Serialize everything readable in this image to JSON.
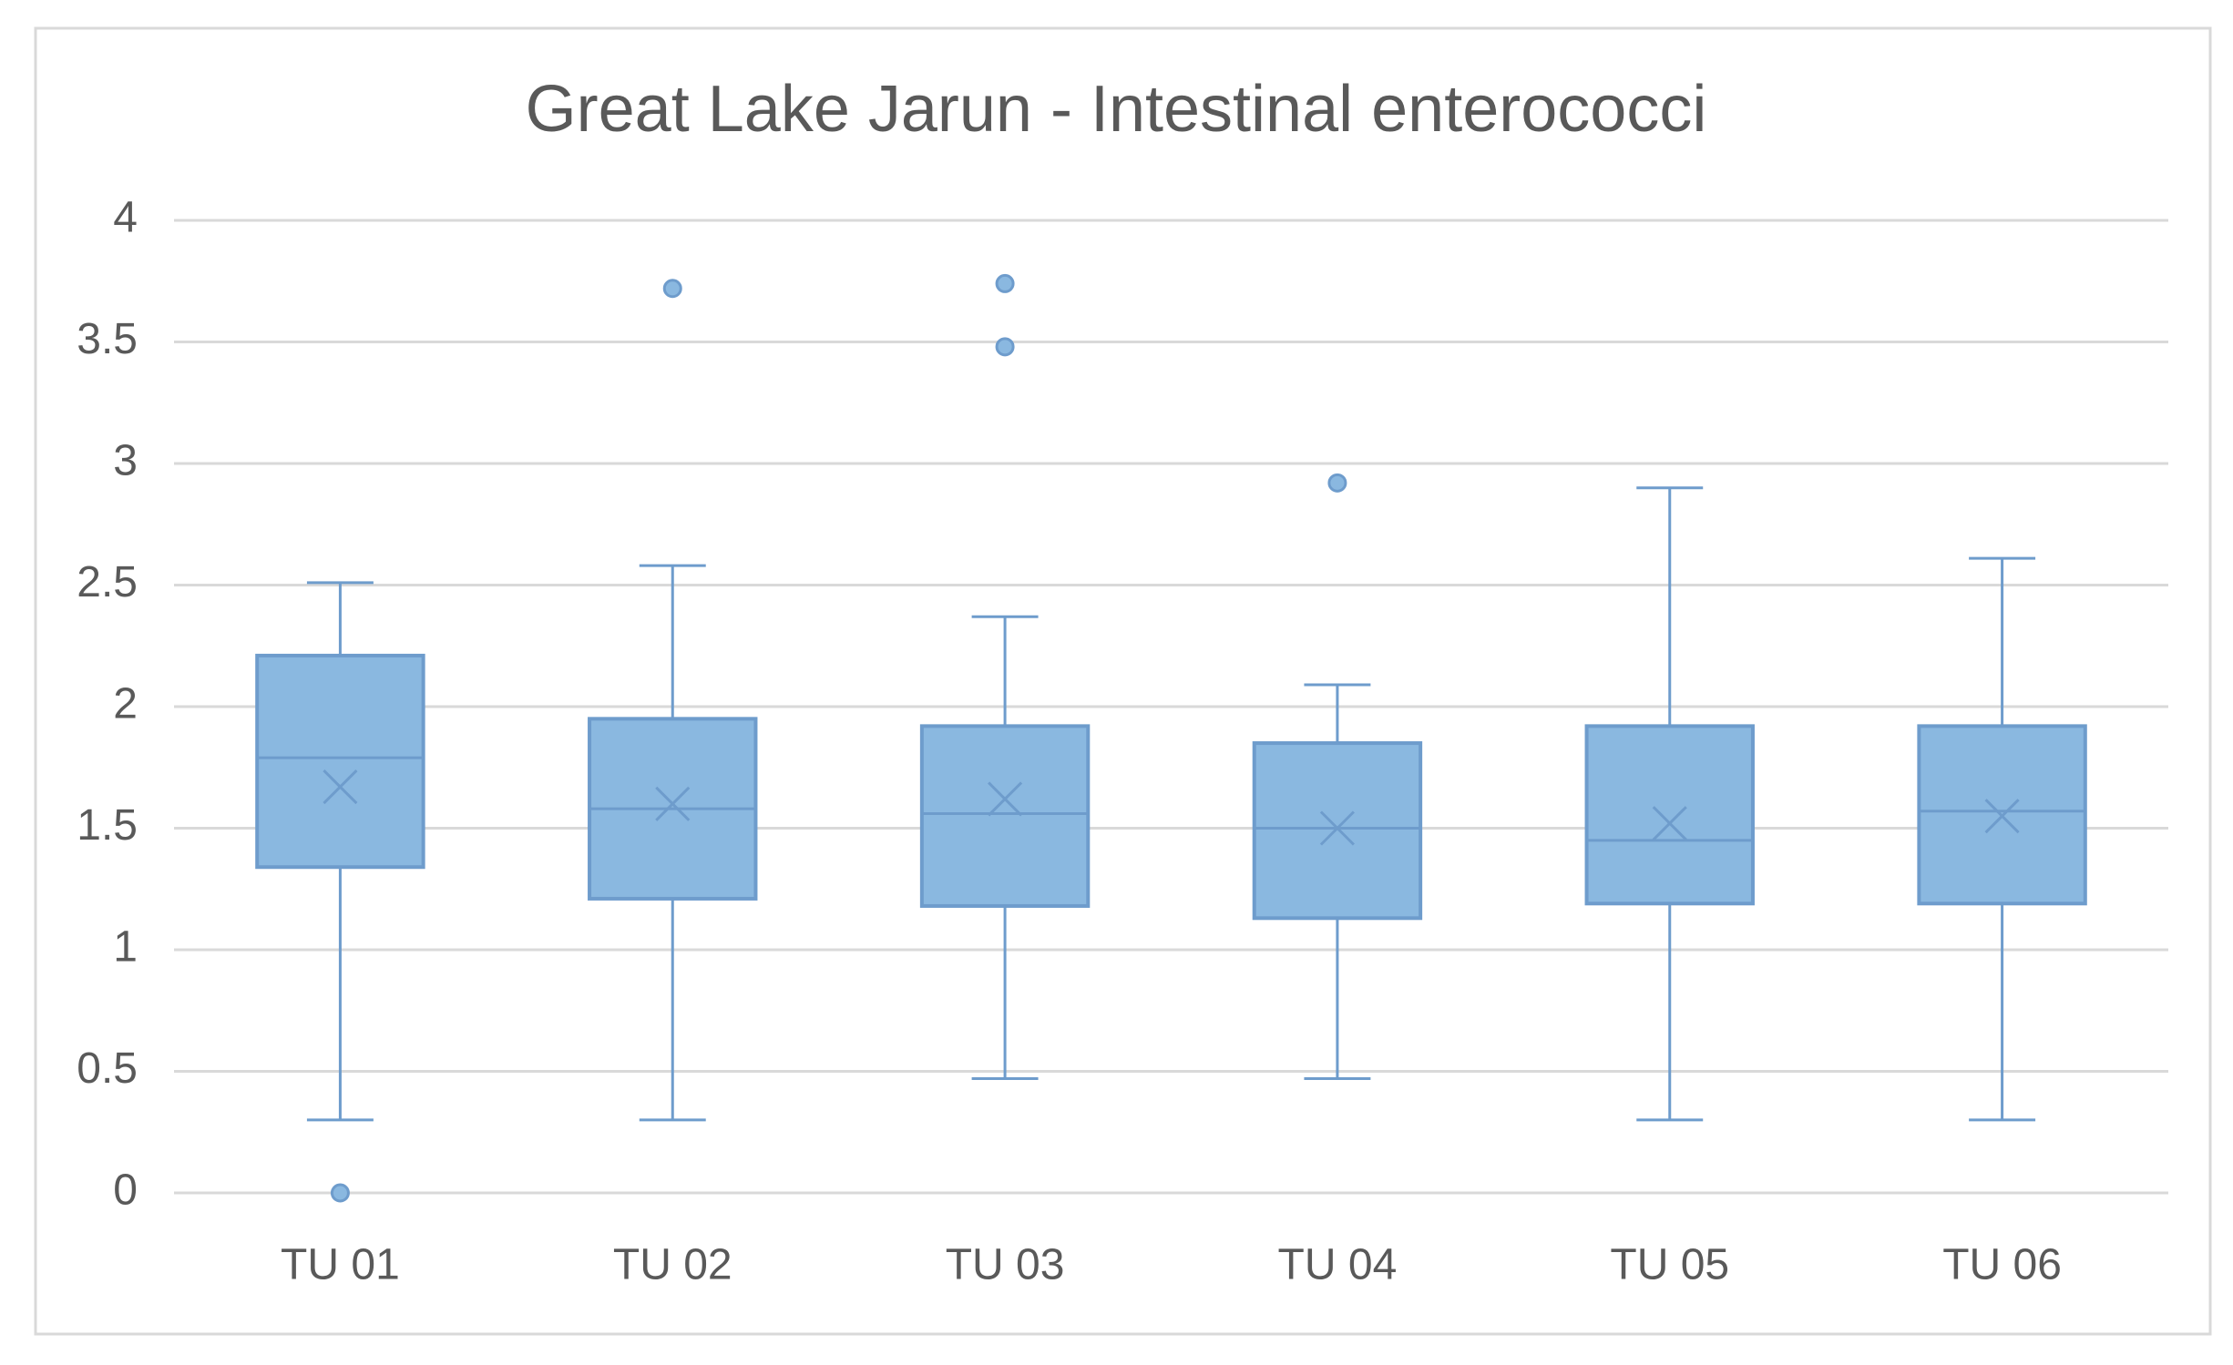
{
  "chart_data": {
    "type": "box",
    "title": "Great Lake Jarun - Intestinal enterococci",
    "categories": [
      "TU 01",
      "TU 02",
      "TU 03",
      "TU 04",
      "TU 05",
      "TU 06"
    ],
    "color": "#8ab8e0",
    "edge_color": "#6e9ccc",
    "boxes": [
      {
        "whisker_low": 0.3,
        "q1": 1.34,
        "median": 1.79,
        "q3": 2.21,
        "whisker_high": 2.51,
        "mean": 1.67,
        "outliers": [
          0
        ]
      },
      {
        "whisker_low": 0.3,
        "q1": 1.21,
        "median": 1.58,
        "q3": 1.95,
        "whisker_high": 2.58,
        "mean": 1.6,
        "outliers": [
          3.72
        ]
      },
      {
        "whisker_low": 0.47,
        "q1": 1.18,
        "median": 1.56,
        "q3": 1.92,
        "whisker_high": 2.37,
        "mean": 1.62,
        "outliers": [
          3.74,
          3.48
        ]
      },
      {
        "whisker_low": 0.47,
        "q1": 1.13,
        "median": 1.5,
        "q3": 1.85,
        "whisker_high": 2.09,
        "mean": 1.5,
        "outliers": [
          2.92
        ]
      },
      {
        "whisker_low": 0.3,
        "q1": 1.19,
        "median": 1.45,
        "q3": 1.92,
        "whisker_high": 2.9,
        "mean": 1.52,
        "outliers": []
      },
      {
        "whisker_low": 0.3,
        "q1": 1.19,
        "median": 1.57,
        "q3": 1.92,
        "whisker_high": 2.61,
        "mean": 1.55,
        "outliers": []
      }
    ],
    "ylim": [
      0,
      4
    ],
    "yticks": [
      0,
      0.5,
      1,
      1.5,
      2,
      2.5,
      3,
      3.5,
      4
    ],
    "grid": true
  }
}
